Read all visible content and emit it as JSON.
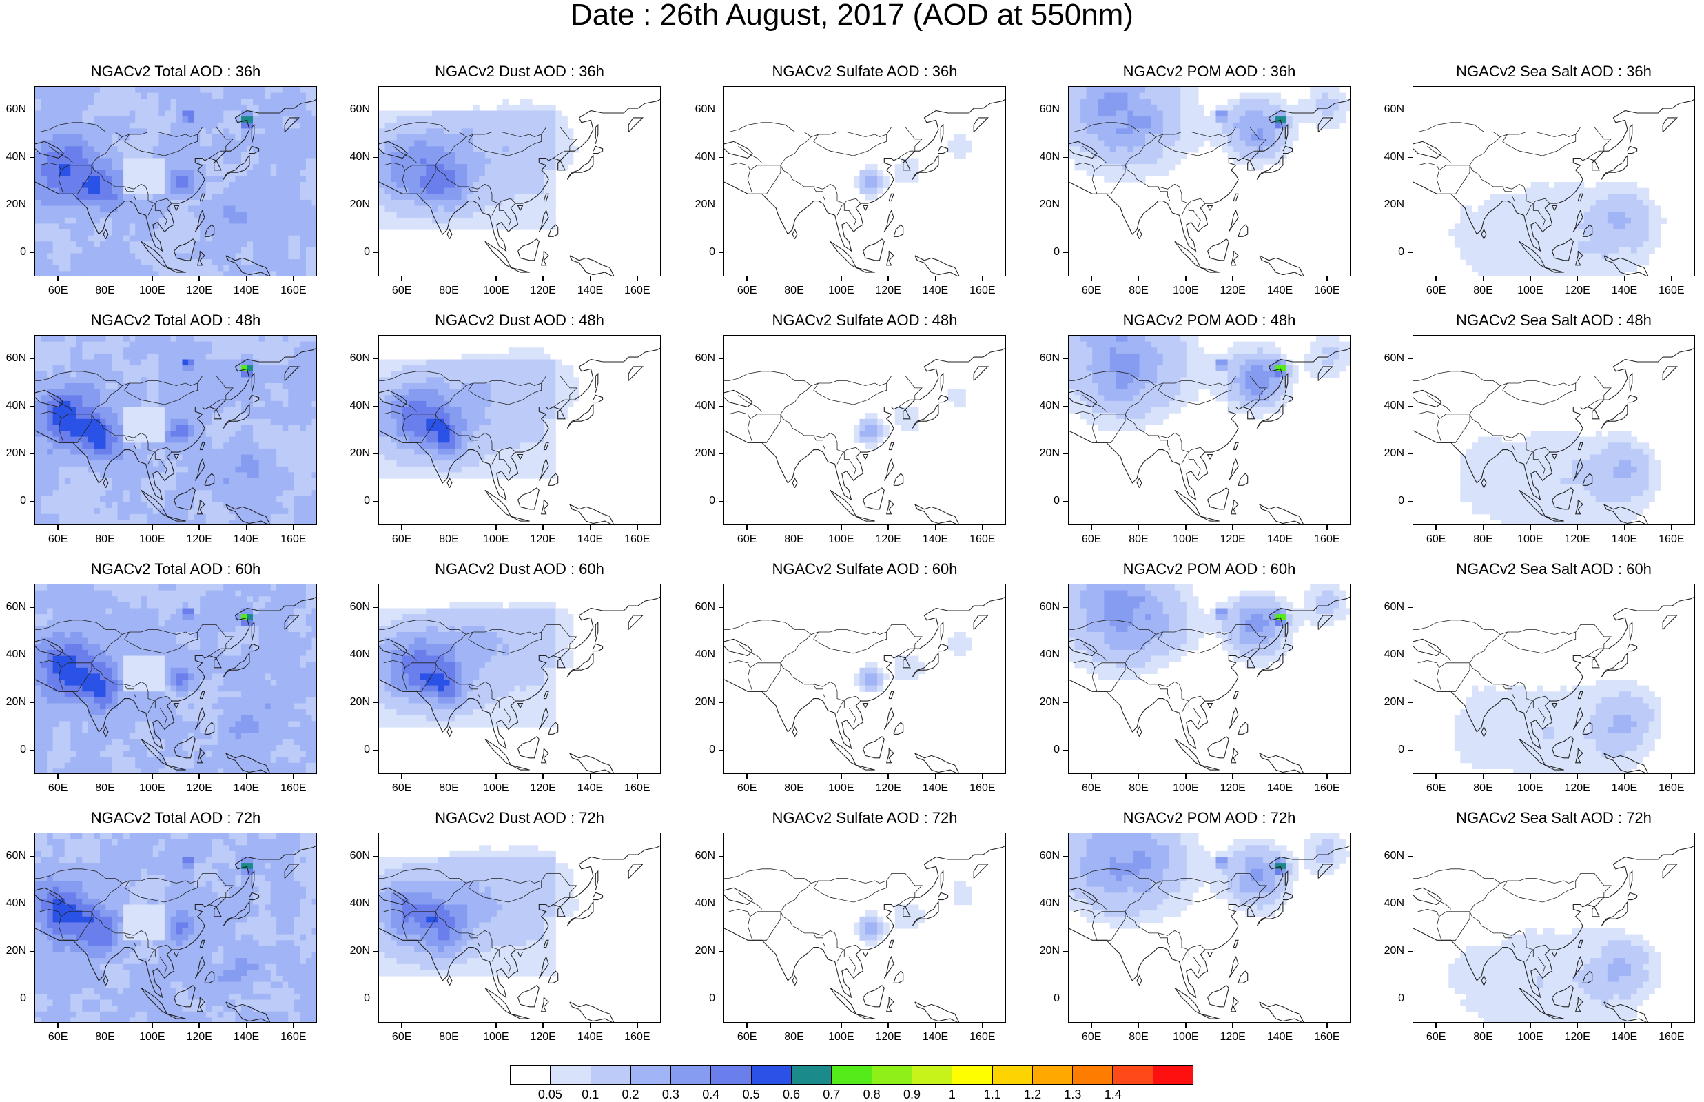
{
  "title": "Date : 26th August, 2017 (AOD at 550nm)",
  "panels": [
    {
      "title": "NGACv2 Total AOD : 36h",
      "type": "total",
      "hour": 36
    },
    {
      "title": "NGACv2 Dust AOD : 36h",
      "type": "dust",
      "hour": 36
    },
    {
      "title": "NGACv2 Sulfate AOD : 36h",
      "type": "sulfate",
      "hour": 36
    },
    {
      "title": "NGACv2 POM AOD : 36h",
      "type": "pom",
      "hour": 36
    },
    {
      "title": "NGACv2 Sea Salt AOD : 36h",
      "type": "seasalt",
      "hour": 36
    },
    {
      "title": "NGACv2 Total AOD : 48h",
      "type": "total",
      "hour": 48
    },
    {
      "title": "NGACv2 Dust AOD : 48h",
      "type": "dust",
      "hour": 48
    },
    {
      "title": "NGACv2 Sulfate AOD : 48h",
      "type": "sulfate",
      "hour": 48
    },
    {
      "title": "NGACv2 POM AOD : 48h",
      "type": "pom",
      "hour": 48
    },
    {
      "title": "NGACv2 Sea Salt AOD : 48h",
      "type": "seasalt",
      "hour": 48
    },
    {
      "title": "NGACv2 Total AOD : 60h",
      "type": "total",
      "hour": 60
    },
    {
      "title": "NGACv2 Dust AOD : 60h",
      "type": "dust",
      "hour": 60
    },
    {
      "title": "NGACv2 Sulfate AOD : 60h",
      "type": "sulfate",
      "hour": 60
    },
    {
      "title": "NGACv2 POM AOD : 60h",
      "type": "pom",
      "hour": 60
    },
    {
      "title": "NGACv2 Sea Salt AOD : 60h",
      "type": "seasalt",
      "hour": 60
    },
    {
      "title": "NGACv2 Total AOD : 72h",
      "type": "total",
      "hour": 72
    },
    {
      "title": "NGACv2 Dust AOD : 72h",
      "type": "dust",
      "hour": 72
    },
    {
      "title": "NGACv2 Sulfate AOD : 72h",
      "type": "sulfate",
      "hour": 72
    },
    {
      "title": "NGACv2 POM AOD : 72h",
      "type": "pom",
      "hour": 72
    },
    {
      "title": "NGACv2 Sea Salt  AOD : 72h",
      "type": "seasalt",
      "hour": 72
    }
  ],
  "lat_ticks": [
    "60N",
    "40N",
    "20N",
    "0"
  ],
  "lat_values": [
    60,
    40,
    20,
    0
  ],
  "lon_ticks": [
    "60E",
    "80E",
    "100E",
    "120E",
    "140E",
    "160E"
  ],
  "lon_values": [
    60,
    80,
    100,
    120,
    140,
    160
  ],
  "lat_range": [
    -10,
    70
  ],
  "lon_range": [
    50,
    170
  ],
  "colorbar": {
    "colors": [
      "#ffffff",
      "#d8e2fb",
      "#bccbf8",
      "#a1b4f5",
      "#869cf1",
      "#6a7feb",
      "#2a52e6",
      "#1a8a8a",
      "#55ea1a",
      "#8ef018",
      "#c7f21a",
      "#fefe00",
      "#fed400",
      "#fea800",
      "#fe7c00",
      "#fe4a18",
      "#fe1010"
    ],
    "labels": [
      "0.05",
      "0.1",
      "0.2",
      "0.3",
      "0.4",
      "0.5",
      "0.6",
      "0.7",
      "0.8",
      "0.9",
      "1",
      "1.1",
      "1.2",
      "1.3",
      "1.4"
    ]
  }
}
